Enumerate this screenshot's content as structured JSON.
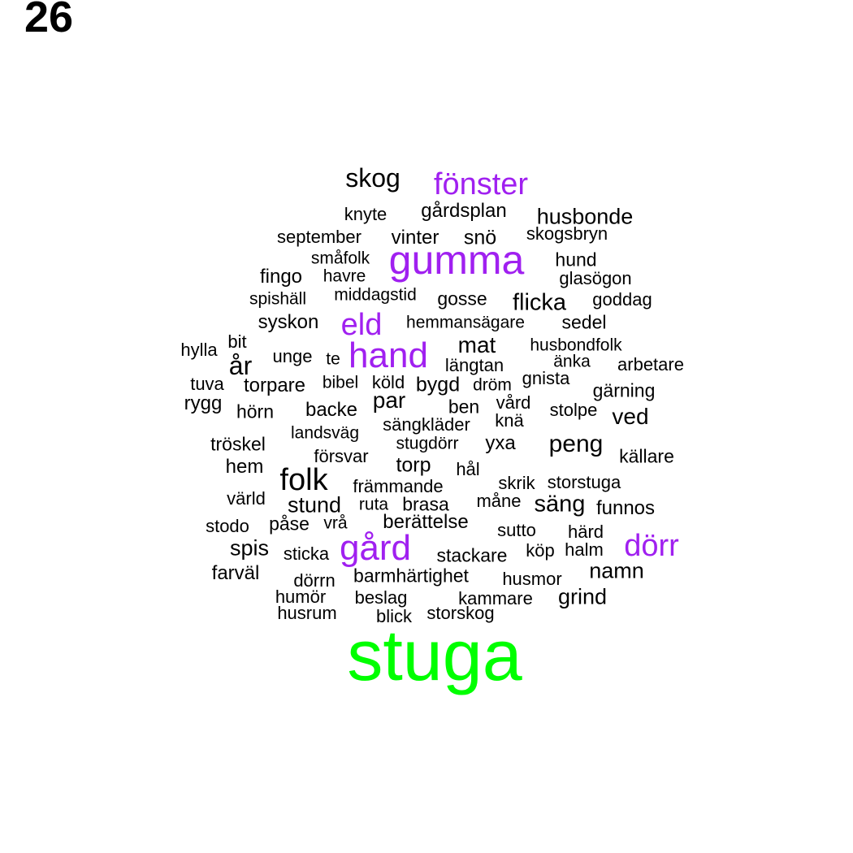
{
  "panel_number": "26",
  "colors": {
    "default": "#000000",
    "accent": "#a020f0",
    "top": "#00ff00"
  },
  "words": [
    {
      "text": "stuga",
      "color": "top"
    },
    {
      "text": "gumma",
      "color": "accent"
    },
    {
      "text": "hand",
      "color": "accent"
    },
    {
      "text": "gård",
      "color": "accent"
    },
    {
      "text": "dörr",
      "color": "accent"
    },
    {
      "text": "fönster",
      "color": "accent"
    },
    {
      "text": "eld",
      "color": "accent"
    },
    {
      "text": "folk",
      "color": "default"
    },
    {
      "text": "skog",
      "color": "default"
    },
    {
      "text": "år",
      "color": "default"
    },
    {
      "text": "husbonde",
      "color": "default"
    },
    {
      "text": "flicka",
      "color": "default"
    },
    {
      "text": "peng",
      "color": "default"
    },
    {
      "text": "mat",
      "color": "default"
    },
    {
      "text": "par",
      "color": "default"
    },
    {
      "text": "säng",
      "color": "default"
    },
    {
      "text": "stund",
      "color": "default"
    },
    {
      "text": "ved",
      "color": "default"
    },
    {
      "text": "namn",
      "color": "default"
    },
    {
      "text": "grind",
      "color": "default"
    },
    {
      "text": "spis",
      "color": "default"
    },
    {
      "text": "berättelse",
      "color": "default"
    },
    {
      "text": "torp",
      "color": "default"
    },
    {
      "text": "bygd",
      "color": "default"
    },
    {
      "text": "vinter",
      "color": "default"
    },
    {
      "text": "snö",
      "color": "default"
    },
    {
      "text": "syskon",
      "color": "default"
    },
    {
      "text": "gårdsplan",
      "color": "default"
    },
    {
      "text": "fingo",
      "color": "default"
    },
    {
      "text": "torpare",
      "color": "default"
    },
    {
      "text": "backe",
      "color": "default"
    },
    {
      "text": "hem",
      "color": "default"
    },
    {
      "text": "stackare",
      "color": "default"
    },
    {
      "text": "farväl",
      "color": "default"
    },
    {
      "text": "barmhärtighet",
      "color": "default"
    },
    {
      "text": "gosse",
      "color": "default"
    },
    {
      "text": "hund",
      "color": "default"
    },
    {
      "text": "sedel",
      "color": "default"
    },
    {
      "text": "gärning",
      "color": "default"
    },
    {
      "text": "köld",
      "color": "default"
    },
    {
      "text": "skogsbryn",
      "color": "default"
    },
    {
      "text": "september",
      "color": "default"
    },
    {
      "text": "knyte",
      "color": "default"
    },
    {
      "text": "glasögon",
      "color": "default"
    },
    {
      "text": "goddag",
      "color": "default"
    },
    {
      "text": "havre",
      "color": "default"
    },
    {
      "text": "småfolk",
      "color": "default"
    },
    {
      "text": "spishäll",
      "color": "default"
    },
    {
      "text": "middagstid",
      "color": "default"
    },
    {
      "text": "hemmansägare",
      "color": "default"
    },
    {
      "text": "husbondfolk",
      "color": "default"
    },
    {
      "text": "hylla",
      "color": "default"
    },
    {
      "text": "bit",
      "color": "default"
    },
    {
      "text": "unge",
      "color": "default"
    },
    {
      "text": "te",
      "color": "default"
    },
    {
      "text": "längtan",
      "color": "default"
    },
    {
      "text": "änka",
      "color": "default"
    },
    {
      "text": "arbetare",
      "color": "default"
    },
    {
      "text": "tuva",
      "color": "default"
    },
    {
      "text": "bibel",
      "color": "default"
    },
    {
      "text": "dröm",
      "color": "default"
    },
    {
      "text": "gnista",
      "color": "default"
    },
    {
      "text": "rygg",
      "color": "default"
    },
    {
      "text": "hörn",
      "color": "default"
    },
    {
      "text": "ben",
      "color": "default"
    },
    {
      "text": "vård",
      "color": "default"
    },
    {
      "text": "stolpe",
      "color": "default"
    },
    {
      "text": "landsväg",
      "color": "default"
    },
    {
      "text": "sängkläder",
      "color": "default"
    },
    {
      "text": "knä",
      "color": "default"
    },
    {
      "text": "tröskel",
      "color": "default"
    },
    {
      "text": "stugdörr",
      "color": "default"
    },
    {
      "text": "yxa",
      "color": "default"
    },
    {
      "text": "källare",
      "color": "default"
    },
    {
      "text": "försvar",
      "color": "default"
    },
    {
      "text": "hål",
      "color": "default"
    },
    {
      "text": "främmande",
      "color": "default"
    },
    {
      "text": "skrik",
      "color": "default"
    },
    {
      "text": "storstuga",
      "color": "default"
    },
    {
      "text": "värld",
      "color": "default"
    },
    {
      "text": "ruta",
      "color": "default"
    },
    {
      "text": "brasa",
      "color": "default"
    },
    {
      "text": "måne",
      "color": "default"
    },
    {
      "text": "funnos",
      "color": "default"
    },
    {
      "text": "stodo",
      "color": "default"
    },
    {
      "text": "påse",
      "color": "default"
    },
    {
      "text": "vrå",
      "color": "default"
    },
    {
      "text": "sutto",
      "color": "default"
    },
    {
      "text": "härd",
      "color": "default"
    },
    {
      "text": "sticka",
      "color": "default"
    },
    {
      "text": "köp",
      "color": "default"
    },
    {
      "text": "halm",
      "color": "default"
    },
    {
      "text": "dörrn",
      "color": "default"
    },
    {
      "text": "husmor",
      "color": "default"
    },
    {
      "text": "humör",
      "color": "default"
    },
    {
      "text": "beslag",
      "color": "default"
    },
    {
      "text": "kammare",
      "color": "default"
    },
    {
      "text": "husrum",
      "color": "default"
    },
    {
      "text": "blick",
      "color": "default"
    },
    {
      "text": "storskog",
      "color": "default"
    }
  ]
}
